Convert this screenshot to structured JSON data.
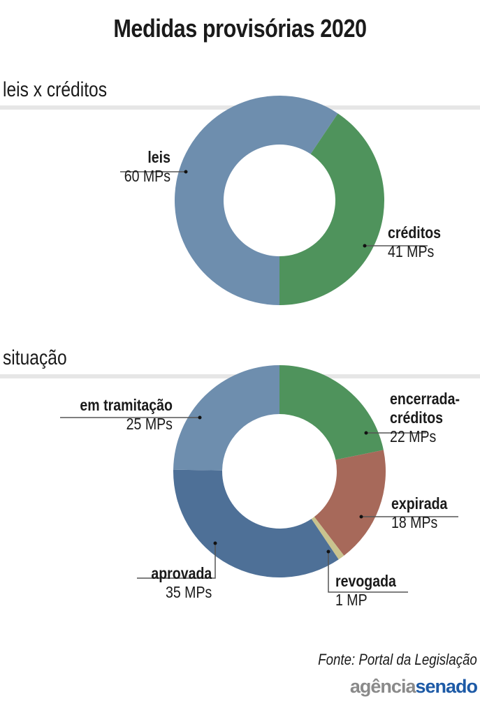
{
  "title": "Medidas provisórias 2020",
  "source": "Fonte: Portal da Legislação",
  "logo": {
    "part1": "agência",
    "part2": "senado"
  },
  "chart_data": [
    {
      "type": "pie",
      "title": "leis x créditos",
      "unit": "MPs",
      "slices": [
        {
          "name": "leis",
          "value": 60,
          "label": "60 MPs",
          "color": "#6e8eae"
        },
        {
          "name": "créditos",
          "value": 41,
          "label": "41 MPs",
          "color": "#4f935c"
        }
      ]
    },
    {
      "type": "pie",
      "title": "situação",
      "unit": "MPs",
      "slices": [
        {
          "name": "encerrada-créditos",
          "value": 22,
          "label": "22 MPs",
          "color": "#4f935c"
        },
        {
          "name": "expirada",
          "value": 18,
          "label": "18 MPs",
          "color": "#a7695a"
        },
        {
          "name": "revogada",
          "value": 1,
          "label": "1 MP",
          "color": "#c9c38e"
        },
        {
          "name": "aprovada",
          "value": 35,
          "label": "35 MPs",
          "color": "#4e7097"
        },
        {
          "name": "em tramitação",
          "value": 25,
          "label": "25 MPs",
          "color": "#6e8eae"
        }
      ]
    }
  ]
}
